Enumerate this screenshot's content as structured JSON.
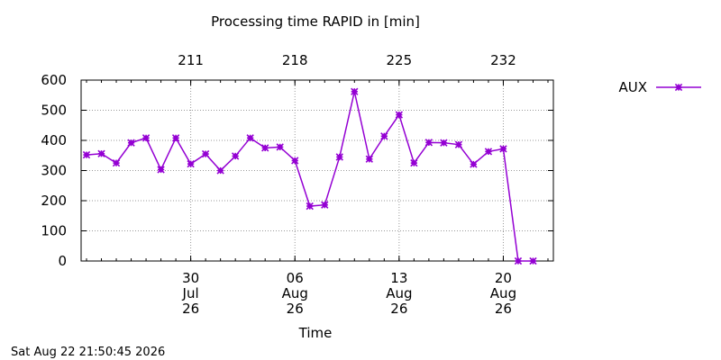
{
  "chart_data": {
    "type": "line",
    "title": "Processing time RAPID in [min]",
    "xlabel": "Time",
    "ylabel": "",
    "ylim": [
      0,
      600
    ],
    "yticks": [
      0,
      100,
      200,
      300,
      400,
      500,
      600
    ],
    "xlim": [
      "2026-07-23",
      "2026-08-23"
    ],
    "bottom_ticks": [
      {
        "date": "2026-07-30",
        "day": "30",
        "month": "Jul",
        "year": "26"
      },
      {
        "date": "2026-08-06",
        "day": "06",
        "month": "Aug",
        "year": "26"
      },
      {
        "date": "2026-08-13",
        "day": "13",
        "month": "Aug",
        "year": "26"
      },
      {
        "date": "2026-08-20",
        "day": "20",
        "month": "Aug",
        "year": "26"
      }
    ],
    "top_ticks": [
      {
        "date": "2026-07-30",
        "label": "211"
      },
      {
        "date": "2026-08-06",
        "label": "218"
      },
      {
        "date": "2026-08-13",
        "label": "225"
      },
      {
        "date": "2026-08-20",
        "label": "232"
      }
    ],
    "grid": true,
    "legend": "right",
    "series": [
      {
        "name": "AUX",
        "color": "#9400d3",
        "marker": "star",
        "x": [
          "2026-07-23",
          "2026-07-24",
          "2026-07-25",
          "2026-07-26",
          "2026-07-27",
          "2026-07-28",
          "2026-07-29",
          "2026-07-30",
          "2026-07-31",
          "2026-08-01",
          "2026-08-02",
          "2026-08-03",
          "2026-08-04",
          "2026-08-05",
          "2026-08-06",
          "2026-08-07",
          "2026-08-08",
          "2026-08-09",
          "2026-08-10",
          "2026-08-11",
          "2026-08-12",
          "2026-08-13",
          "2026-08-14",
          "2026-08-15",
          "2026-08-16",
          "2026-08-17",
          "2026-08-18",
          "2026-08-19",
          "2026-08-20",
          "2026-08-21",
          "2026-08-22"
        ],
        "values": [
          352,
          356,
          325,
          392,
          408,
          303,
          408,
          322,
          355,
          300,
          348,
          408,
          375,
          378,
          333,
          182,
          186,
          345,
          562,
          338,
          414,
          485,
          325,
          393,
          392,
          386,
          321,
          363,
          372,
          0,
          0
        ]
      }
    ]
  },
  "footer": {
    "timestamp": "Sat Aug 22 21:50:45 2026"
  }
}
